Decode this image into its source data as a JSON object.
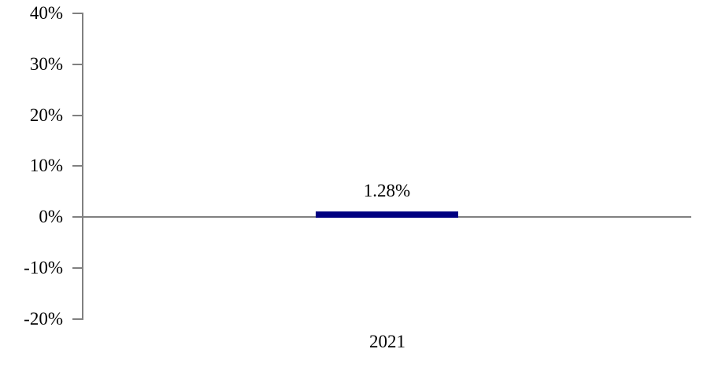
{
  "chart_data": {
    "type": "bar",
    "categories": [
      "2021"
    ],
    "values": [
      1.28
    ],
    "data_labels": [
      "1.28%"
    ],
    "title": "",
    "xlabel": "",
    "ylabel": "",
    "ylim": [
      -20,
      40
    ],
    "yticks": [
      40,
      30,
      20,
      10,
      0,
      -10,
      -20
    ],
    "ytick_labels": [
      "40%",
      "30%",
      "20%",
      "10%",
      "0%",
      "-10%",
      "-20%"
    ],
    "grid": false,
    "legend": false,
    "colors": {
      "bar": "#000080",
      "axis": "#808080",
      "text": "#000000",
      "background": "#ffffff"
    }
  }
}
